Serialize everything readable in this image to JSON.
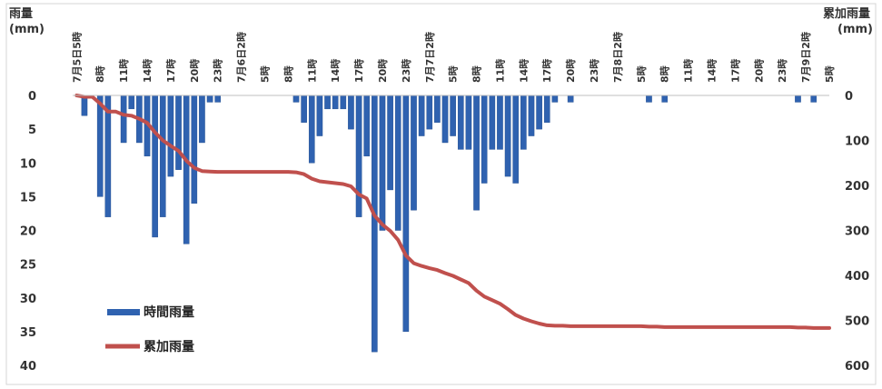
{
  "chart_data": {
    "type": "bar+line",
    "y_left_label": "雨量\n(mm)",
    "y_right_label": "累加雨量\n(mm)",
    "y_left_ticks": [
      0,
      5,
      10,
      15,
      20,
      25,
      30,
      35,
      40
    ],
    "y_right_ticks": [
      0,
      100,
      200,
      300,
      400,
      500,
      600
    ],
    "y_left_range": [
      0,
      40
    ],
    "y_right_range": [
      0,
      600
    ],
    "left_axis_inverted": true,
    "right_axis_inverted": true,
    "x_tick_labels": [
      {
        "hour": 0,
        "text": "7月5日5時"
      },
      {
        "hour": 3,
        "text": "8時"
      },
      {
        "hour": 6,
        "text": "11時"
      },
      {
        "hour": 9,
        "text": "14時"
      },
      {
        "hour": 12,
        "text": "17時"
      },
      {
        "hour": 15,
        "text": "20時"
      },
      {
        "hour": 18,
        "text": "23時"
      },
      {
        "hour": 21,
        "text": "7月6日2時"
      },
      {
        "hour": 24,
        "text": "5時"
      },
      {
        "hour": 27,
        "text": "8時"
      },
      {
        "hour": 30,
        "text": "11時"
      },
      {
        "hour": 33,
        "text": "14時"
      },
      {
        "hour": 36,
        "text": "17時"
      },
      {
        "hour": 39,
        "text": "20時"
      },
      {
        "hour": 42,
        "text": "23時"
      },
      {
        "hour": 45,
        "text": "7月7日2時"
      },
      {
        "hour": 48,
        "text": "5時"
      },
      {
        "hour": 51,
        "text": "8時"
      },
      {
        "hour": 54,
        "text": "11時"
      },
      {
        "hour": 57,
        "text": "14時"
      },
      {
        "hour": 60,
        "text": "17時"
      },
      {
        "hour": 63,
        "text": "20時"
      },
      {
        "hour": 66,
        "text": "23時"
      },
      {
        "hour": 69,
        "text": "7月8日2時"
      },
      {
        "hour": 72,
        "text": "5時"
      },
      {
        "hour": 75,
        "text": "8時"
      },
      {
        "hour": 78,
        "text": "11時"
      },
      {
        "hour": 81,
        "text": "14時"
      },
      {
        "hour": 84,
        "text": "17時"
      },
      {
        "hour": 87,
        "text": "20時"
      },
      {
        "hour": 90,
        "text": "23時"
      },
      {
        "hour": 93,
        "text": "7月9日2時"
      },
      {
        "hour": 96,
        "text": "5時"
      }
    ],
    "series": [
      {
        "name": "時間雨量",
        "type": "bar",
        "color": "#2f62b0",
        "values": [
          0,
          3,
          0,
          15,
          18,
          0,
          7,
          2,
          7,
          9,
          21,
          18,
          12,
          11,
          22,
          16,
          7,
          1,
          1,
          0,
          0,
          0,
          0,
          0,
          0,
          0,
          0,
          0,
          1,
          4,
          10,
          6,
          2,
          2,
          2,
          5,
          18,
          9,
          38,
          20,
          14,
          20,
          35,
          17,
          6,
          5,
          4,
          7,
          6,
          8,
          8,
          17,
          13,
          8,
          8,
          12,
          13,
          8,
          6,
          5,
          4,
          1,
          0,
          1,
          0,
          0,
          0,
          0,
          0,
          0,
          0,
          0,
          0,
          1,
          0,
          1,
          0,
          0,
          0,
          0,
          0,
          0,
          0,
          0,
          0,
          0,
          0,
          0,
          0,
          0,
          0,
          0,
          1,
          0,
          1,
          0,
          0
        ]
      },
      {
        "name": "累加雨量",
        "type": "line",
        "color": "#c0504d",
        "axis": "right"
      }
    ]
  },
  "legend": {
    "bar_label": "時間雨量",
    "line_label": "累加雨量"
  }
}
